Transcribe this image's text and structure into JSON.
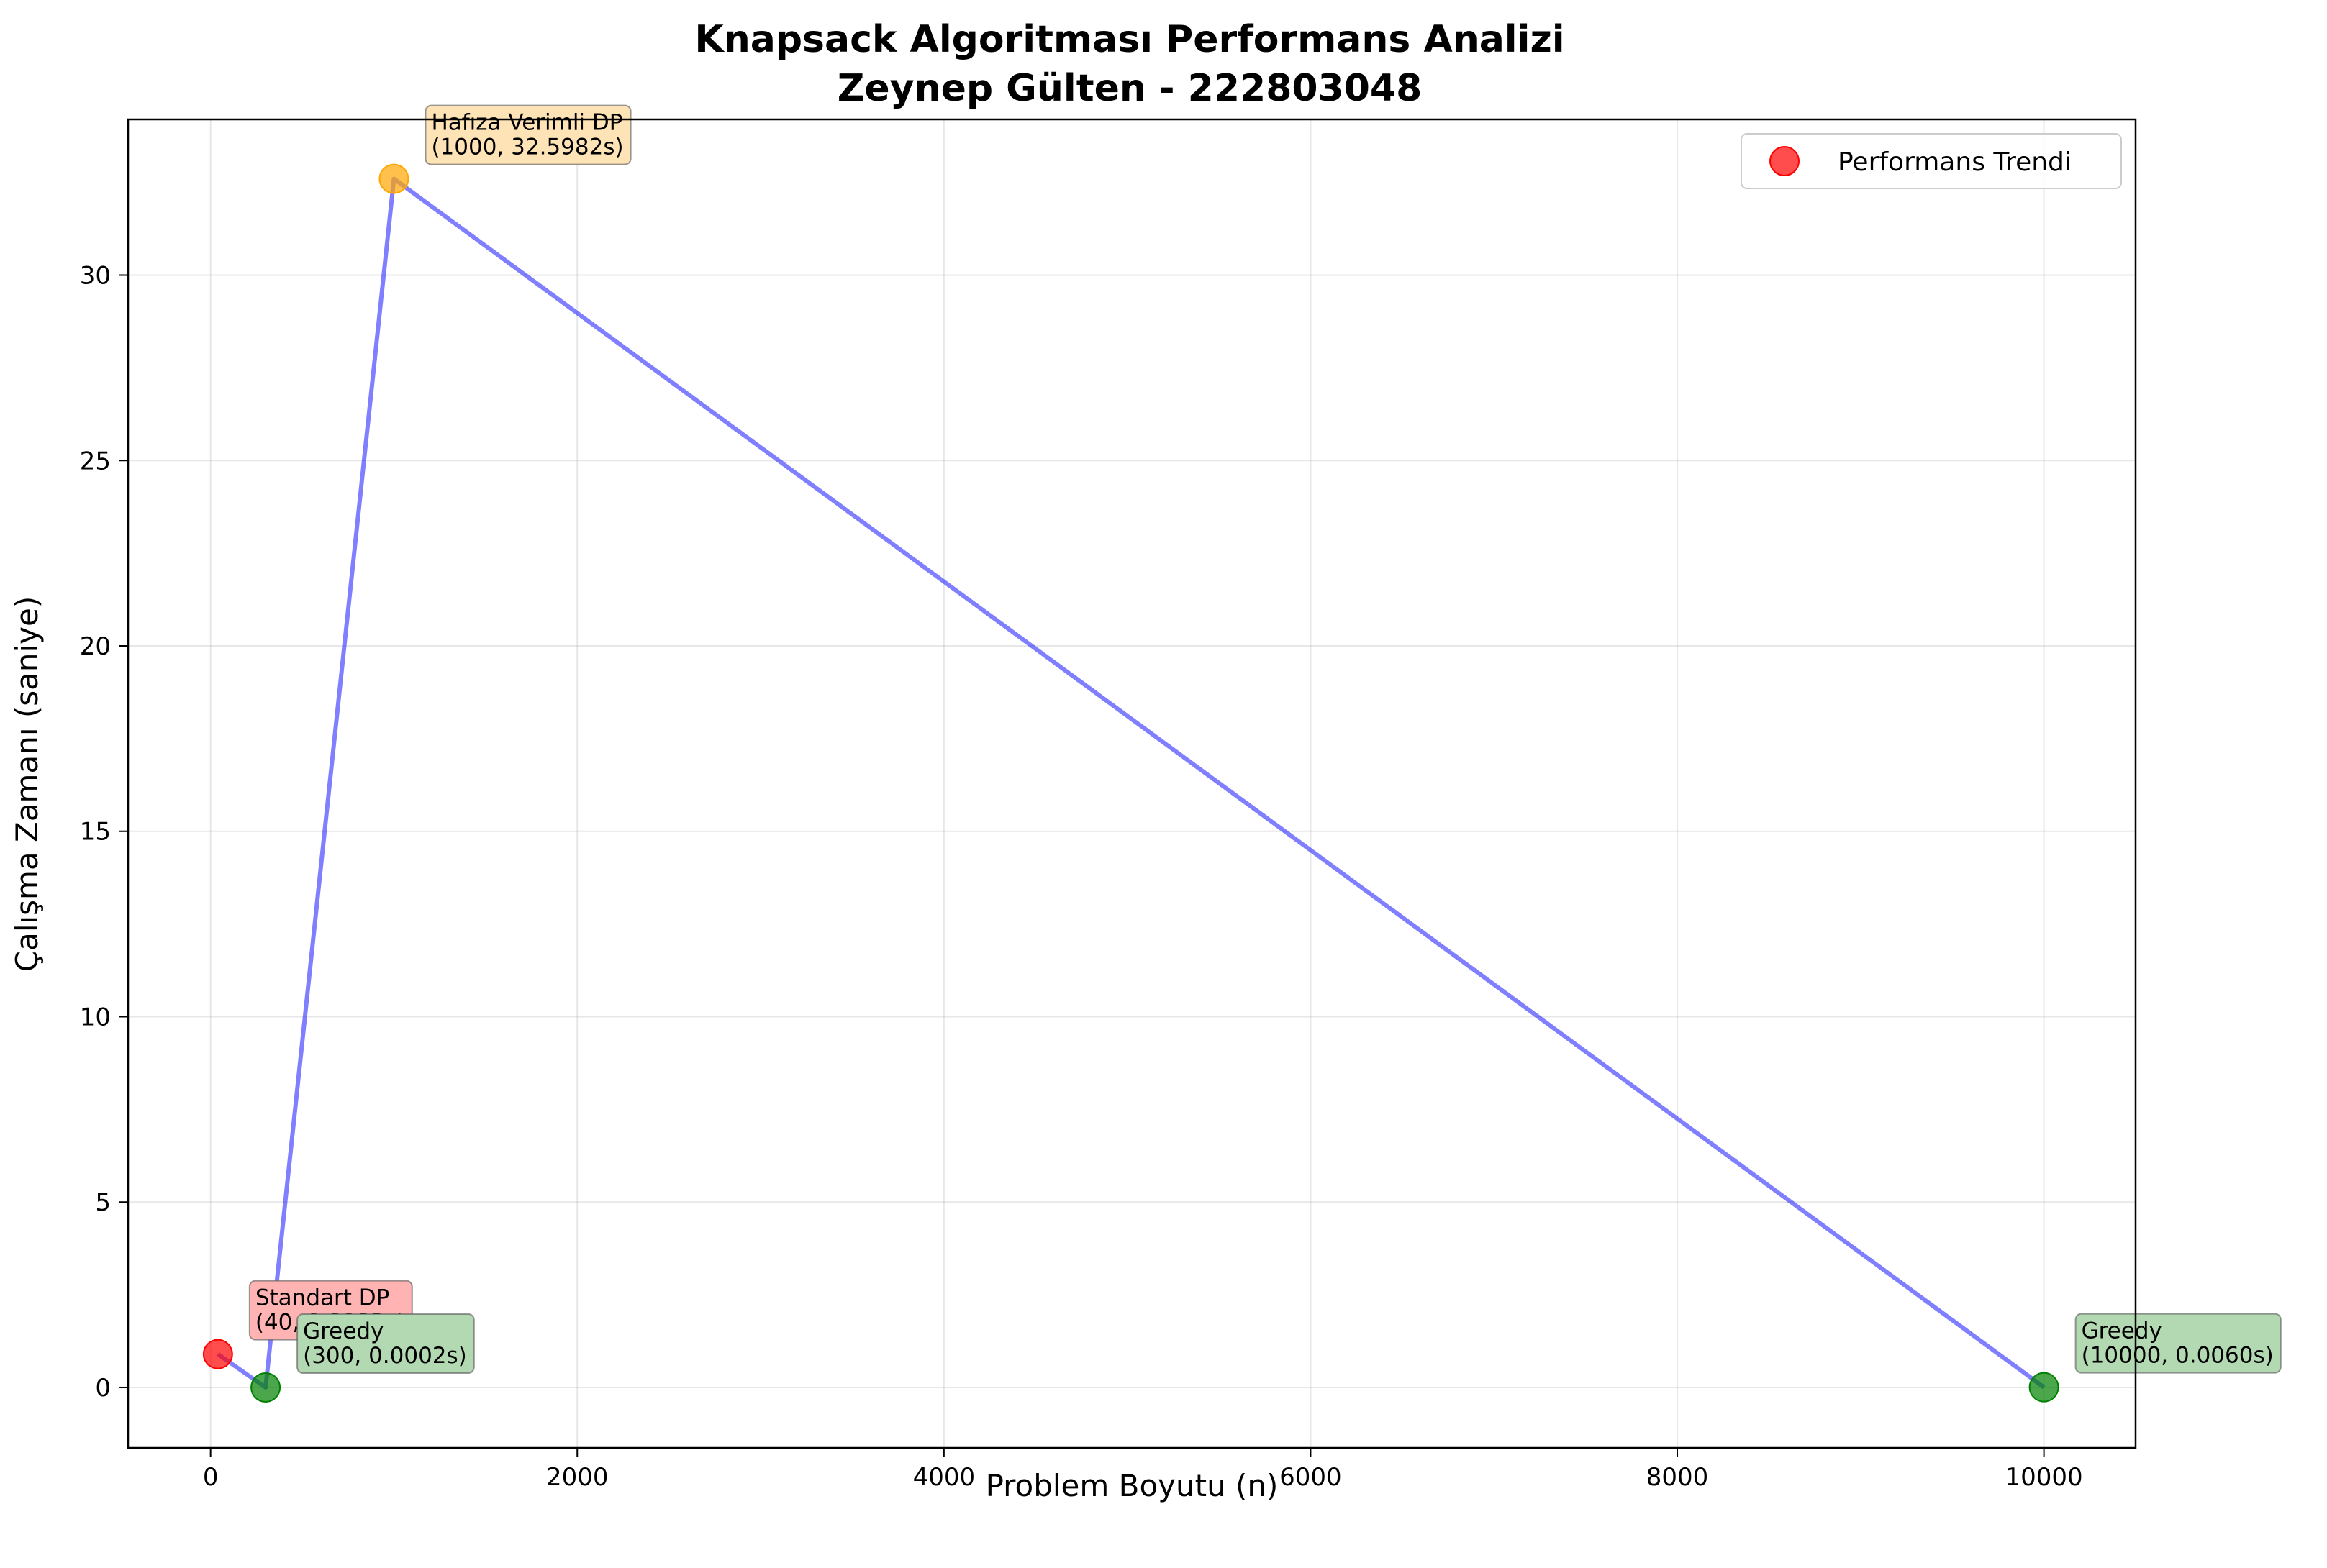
{
  "chart_data": {
    "type": "scatter",
    "title_lines": [
      "Knapsack Algoritması Performans Analizi",
      "Zeynep Gülten - 222803048"
    ],
    "xlabel": "Problem Boyutu (n)",
    "ylabel": "Çalışma Zamanı (saniye)",
    "xlim": [
      -450,
      10500
    ],
    "ylim": [
      -1.63,
      34.2
    ],
    "xticks": [
      0,
      2000,
      4000,
      6000,
      8000,
      10000
    ],
    "yticks": [
      0,
      5,
      10,
      15,
      20,
      25,
      30
    ],
    "grid": true,
    "legend_position": "top-right",
    "legend": [
      {
        "label": "Performans Trendi",
        "color": "#ff0000"
      }
    ],
    "trend_line": {
      "color": "#0000ff",
      "order": [
        0,
        1,
        2,
        3
      ]
    },
    "points": [
      {
        "algorithm": "Standart DP",
        "label": "(40, 0.8982s)",
        "x": 40,
        "y": 0.8982,
        "color": "#ff0000",
        "annotation_bg": "#ffb3b3",
        "annotation_offset": "upper-right"
      },
      {
        "algorithm": "Greedy",
        "label": "(300, 0.0002s)",
        "x": 300,
        "y": 0.0002,
        "color": "#008000",
        "annotation_bg": "#b3d9b3",
        "annotation_offset": "upper-right"
      },
      {
        "algorithm": "Hafıza Verimli DP",
        "label": "(1000, 32.5982s)",
        "x": 1000,
        "y": 32.5982,
        "color": "#ffa500",
        "annotation_bg": "#fde3b6",
        "annotation_offset": "upper-right"
      },
      {
        "algorithm": "Greedy",
        "label": "(10000, 0.0060s)",
        "x": 10000,
        "y": 0.006,
        "color": "#008000",
        "annotation_bg": "#b3d9b3",
        "annotation_offset": "upper-right"
      }
    ]
  }
}
